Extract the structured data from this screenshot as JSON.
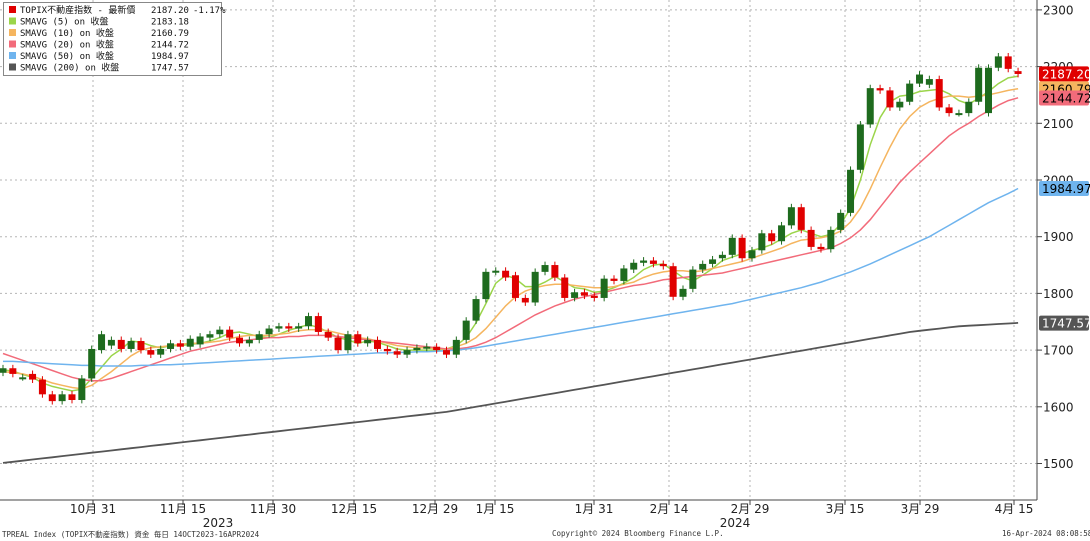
{
  "footer": {
    "left": "TPREAL Index (TOPIX不動産指数) 資金  毎日 14OCT2023-16APR2024",
    "center": "Copyright© 2024 Bloomberg Finance L.P.",
    "right": "16-Apr-2024 08:08:58"
  },
  "chart_data": {
    "type": "candlestick",
    "ylim": [
      1450,
      2310
    ],
    "y_ticks": [
      1500,
      1600,
      1700,
      1800,
      1900,
      2000,
      2100,
      2200,
      2300
    ],
    "x_tick_labels": [
      "10月 31",
      "11月 15",
      "11月 30",
      "12月 15",
      "12月 29",
      "1月 15",
      "1月 31",
      "2月 14",
      "2月 29",
      "3月 15",
      "3月 29",
      "4月 15"
    ],
    "x_year_labels": [
      "2023",
      "2024"
    ],
    "grid": true,
    "legend_position": "top-left",
    "legend": [
      {
        "name": "TOPIX不動産指数 - 最新價",
        "value": "2187.20",
        "change": "-1.17%",
        "color": "#e00000"
      },
      {
        "name": "SMAVG (5)  on 收盤",
        "value": "2183.18",
        "color": "#9bd54a"
      },
      {
        "name": "SMAVG (10)  on 收盤",
        "value": "2160.79",
        "color": "#f5b55f"
      },
      {
        "name": "SMAVG (20)  on 收盤",
        "value": "2144.72",
        "color": "#f26b7a"
      },
      {
        "name": "SMAVG (50)  on 收盤",
        "value": "1984.97",
        "color": "#6fb4ee"
      },
      {
        "name": "SMAVG (200)  on 收盤",
        "value": "1747.57",
        "color": "#555555"
      }
    ],
    "price_tags": [
      {
        "label": "2187.20",
        "value": 2187.2,
        "bg": "#e00000",
        "fg": "#ffffff"
      },
      {
        "label": "2160.79",
        "value": 2160.79,
        "bg": "#f5b55f",
        "fg": "#000000"
      },
      {
        "label": "2144.72",
        "value": 2144.72,
        "bg": "#f26b7a",
        "fg": "#000000"
      },
      {
        "label": "1984.97",
        "value": 1984.97,
        "bg": "#6fb4ee",
        "fg": "#000000"
      },
      {
        "label": "1747.57",
        "value": 1747.57,
        "bg": "#555555",
        "fg": "#ffffff"
      }
    ],
    "candles": {
      "up_color": "#1e6b1e",
      "down_color": "#e00000",
      "open": [
        1660,
        1668,
        1652,
        1658,
        1648,
        1622,
        1610,
        1622,
        1612,
        1650,
        1700,
        1708,
        1718,
        1702,
        1716,
        1700,
        1692,
        1702,
        1712,
        1706,
        1710,
        1722,
        1728,
        1736,
        1722,
        1712,
        1718,
        1728,
        1738,
        1742,
        1738,
        1742,
        1760,
        1732,
        1722,
        1700,
        1728,
        1712,
        1718,
        1702,
        1698,
        1692,
        1700,
        1704,
        1706,
        1700,
        1692,
        1718,
        1752,
        1790,
        1838,
        1840,
        1832,
        1792,
        1784,
        1838,
        1850,
        1828,
        1792,
        1802,
        1796,
        1792,
        1826,
        1822,
        1842,
        1854,
        1858,
        1852,
        1848,
        1794,
        1808,
        1842,
        1852,
        1862,
        1868,
        1898,
        1862,
        1876,
        1906,
        1892,
        1920,
        1952,
        1912,
        1882,
        1878,
        1912,
        1942,
        2018,
        2098,
        2162,
        2158,
        2128,
        2138,
        2170,
        2168,
        2178,
        2128,
        2118,
        2118,
        2138,
        2118,
        2198,
        2218,
        2192
      ],
      "close": [
        1668,
        1658,
        1652,
        1648,
        1622,
        1610,
        1622,
        1612,
        1650,
        1702,
        1728,
        1718,
        1702,
        1716,
        1700,
        1692,
        1702,
        1712,
        1706,
        1720,
        1724,
        1728,
        1736,
        1722,
        1712,
        1718,
        1728,
        1738,
        1742,
        1738,
        1742,
        1760,
        1732,
        1722,
        1700,
        1728,
        1712,
        1718,
        1702,
        1698,
        1692,
        1700,
        1704,
        1706,
        1700,
        1692,
        1718,
        1752,
        1790,
        1838,
        1840,
        1828,
        1792,
        1784,
        1838,
        1850,
        1828,
        1792,
        1802,
        1796,
        1792,
        1826,
        1822,
        1844,
        1854,
        1858,
        1852,
        1848,
        1794,
        1808,
        1842,
        1852,
        1860,
        1868,
        1898,
        1862,
        1876,
        1906,
        1892,
        1920,
        1952,
        1912,
        1882,
        1878,
        1912,
        1942,
        2018,
        2098,
        2162,
        2158,
        2128,
        2138,
        2170,
        2186,
        2178,
        2128,
        2118,
        2118,
        2138,
        2198,
        2198,
        2218,
        2196,
        2187
      ]
    },
    "series": [
      {
        "name": "SMAVG (5)",
        "color": "#9bd54a",
        "values": [
          1665,
          1663,
          1657,
          1652,
          1642,
          1636,
          1632,
          1628,
          1631,
          1650,
          1670,
          1690,
          1702,
          1716,
          1714,
          1708,
          1704,
          1708,
          1708,
          1710,
          1712,
          1716,
          1722,
          1730,
          1732,
          1728,
          1724,
          1722,
          1728,
          1735,
          1740,
          1745,
          1740,
          1732,
          1722,
          1718,
          1712,
          1716,
          1714,
          1708,
          1702,
          1700,
          1700,
          1700,
          1700,
          1702,
          1708,
          1722,
          1748,
          1782,
          1818,
          1832,
          1826,
          1812,
          1812,
          1820,
          1830,
          1820,
          1810,
          1808,
          1802,
          1804,
          1810,
          1818,
          1828,
          1842,
          1850,
          1852,
          1840,
          1828,
          1822,
          1832,
          1844,
          1858,
          1864,
          1870,
          1876,
          1880,
          1886,
          1896,
          1906,
          1912,
          1906,
          1900,
          1904,
          1922,
          1950,
          2000,
          2062,
          2110,
          2138,
          2148,
          2150,
          2156,
          2158,
          2160,
          2152,
          2140,
          2134,
          2144,
          2156,
          2170,
          2180,
          2183
        ]
      },
      {
        "name": "SMAVG (10)",
        "color": "#f5b55f",
        "values": [
          1662,
          1660,
          1658,
          1654,
          1648,
          1642,
          1638,
          1634,
          1632,
          1638,
          1650,
          1662,
          1676,
          1690,
          1700,
          1704,
          1706,
          1708,
          1710,
          1712,
          1712,
          1714,
          1716,
          1720,
          1724,
          1726,
          1726,
          1726,
          1728,
          1730,
          1734,
          1736,
          1736,
          1734,
          1730,
          1726,
          1722,
          1720,
          1716,
          1712,
          1708,
          1706,
          1704,
          1704,
          1702,
          1702,
          1706,
          1712,
          1722,
          1738,
          1758,
          1778,
          1794,
          1804,
          1810,
          1814,
          1816,
          1816,
          1814,
          1812,
          1810,
          1810,
          1812,
          1816,
          1820,
          1828,
          1834,
          1838,
          1840,
          1840,
          1838,
          1840,
          1844,
          1848,
          1852,
          1856,
          1862,
          1868,
          1874,
          1880,
          1888,
          1894,
          1896,
          1898,
          1902,
          1910,
          1926,
          1950,
          1984,
          2022,
          2058,
          2090,
          2112,
          2128,
          2138,
          2144,
          2148,
          2148,
          2146,
          2148,
          2150,
          2154,
          2158,
          2161
        ]
      },
      {
        "name": "SMAVG (20)",
        "color": "#f26b7a",
        "values": [
          1694,
          1688,
          1682,
          1676,
          1670,
          1664,
          1658,
          1652,
          1648,
          1646,
          1646,
          1650,
          1656,
          1662,
          1668,
          1674,
          1680,
          1686,
          1692,
          1698,
          1702,
          1706,
          1710,
          1714,
          1716,
          1718,
          1720,
          1722,
          1722,
          1724,
          1724,
          1726,
          1726,
          1726,
          1724,
          1722,
          1720,
          1718,
          1716,
          1714,
          1712,
          1710,
          1708,
          1706,
          1704,
          1702,
          1702,
          1704,
          1708,
          1714,
          1722,
          1732,
          1742,
          1752,
          1762,
          1770,
          1778,
          1784,
          1790,
          1794,
          1798,
          1802,
          1806,
          1810,
          1814,
          1816,
          1820,
          1824,
          1826,
          1828,
          1830,
          1832,
          1834,
          1836,
          1840,
          1844,
          1848,
          1852,
          1856,
          1860,
          1864,
          1868,
          1872,
          1876,
          1880,
          1888,
          1898,
          1912,
          1930,
          1952,
          1974,
          1996,
          2014,
          2030,
          2046,
          2062,
          2078,
          2090,
          2100,
          2112,
          2122,
          2132,
          2140,
          2145
        ]
      },
      {
        "name": "SMAVG (50)",
        "color": "#6fb4ee",
        "values": [
          1680,
          1680,
          1679,
          1678,
          1677,
          1676,
          1675,
          1674,
          1673,
          1673,
          1672,
          1672,
          1672,
          1672,
          1673,
          1673,
          1674,
          1674,
          1675,
          1676,
          1677,
          1678,
          1679,
          1680,
          1681,
          1682,
          1683,
          1684,
          1685,
          1686,
          1687,
          1688,
          1689,
          1690,
          1691,
          1692,
          1693,
          1694,
          1695,
          1695,
          1696,
          1696,
          1697,
          1697,
          1698,
          1699,
          1700,
          1702,
          1704,
          1707,
          1710,
          1713,
          1716,
          1719,
          1722,
          1725,
          1728,
          1731,
          1734,
          1737,
          1740,
          1743,
          1746,
          1749,
          1752,
          1755,
          1758,
          1761,
          1764,
          1767,
          1770,
          1773,
          1776,
          1779,
          1782,
          1786,
          1790,
          1794,
          1798,
          1802,
          1806,
          1810,
          1815,
          1820,
          1826,
          1832,
          1838,
          1845,
          1852,
          1860,
          1868,
          1876,
          1884,
          1892,
          1900,
          1910,
          1920,
          1930,
          1940,
          1950,
          1960,
          1968,
          1976,
          1985
        ]
      },
      {
        "name": "SMAVG (200)",
        "color": "#555555",
        "values": [
          1501,
          1503,
          1505,
          1507,
          1509,
          1511,
          1513,
          1515,
          1517,
          1519,
          1521,
          1523,
          1525,
          1527,
          1529,
          1531,
          1533,
          1535,
          1537,
          1539,
          1541,
          1543,
          1545,
          1547,
          1549,
          1551,
          1553,
          1555,
          1557,
          1559,
          1561,
          1563,
          1565,
          1567,
          1569,
          1571,
          1573,
          1575,
          1577,
          1579,
          1581,
          1583,
          1585,
          1587,
          1589,
          1591,
          1594,
          1597,
          1600,
          1603,
          1606,
          1609,
          1612,
          1615,
          1618,
          1621,
          1624,
          1627,
          1630,
          1633,
          1636,
          1639,
          1642,
          1645,
          1648,
          1651,
          1654,
          1657,
          1660,
          1663,
          1666,
          1669,
          1672,
          1675,
          1678,
          1681,
          1684,
          1687,
          1690,
          1693,
          1696,
          1699,
          1702,
          1705,
          1708,
          1711,
          1714,
          1717,
          1720,
          1723,
          1726,
          1729,
          1732,
          1734,
          1736,
          1738,
          1740,
          1742,
          1743,
          1744,
          1745,
          1746,
          1747,
          1748
        ]
      }
    ]
  }
}
